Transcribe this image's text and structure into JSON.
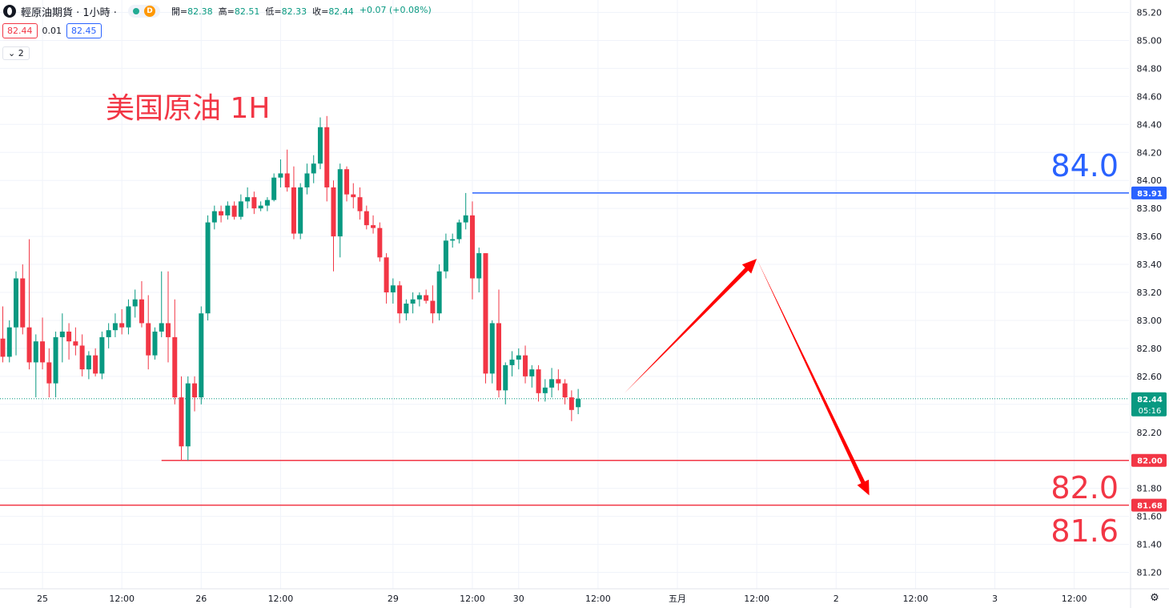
{
  "header": {
    "symbol_title": "輕原油期貨 · 1小時 ·",
    "status_letter": "D",
    "ohlc": [
      {
        "label": "開=",
        "value": "82.38"
      },
      {
        "label": "高=",
        "value": "82.51"
      },
      {
        "label": "低=",
        "value": "82.33"
      },
      {
        "label": "收=",
        "value": "82.44"
      },
      {
        "label": "",
        "value": "+0.07 (+0.08%)"
      }
    ]
  },
  "quote": {
    "bid": "82.44",
    "spread": "0.01",
    "ask": "82.45"
  },
  "collapse": {
    "count": "2"
  },
  "chart_data": {
    "type": "candlestick",
    "title": "美国原油 1H",
    "ylim": [
      81.1,
      85.25
    ],
    "y_ticks": [
      "85.20",
      "85.00",
      "84.80",
      "84.60",
      "84.40",
      "84.20",
      "84.00",
      "83.80",
      "83.60",
      "83.40",
      "83.20",
      "83.00",
      "82.80",
      "82.60",
      "82.40",
      "82.20",
      "82.00",
      "81.80",
      "81.60",
      "81.40",
      "81.20"
    ],
    "x_ticks": [
      {
        "label": "25",
        "slot": 6
      },
      {
        "label": "12:00",
        "slot": 18
      },
      {
        "label": "26",
        "slot": 30
      },
      {
        "label": "12:00",
        "slot": 42
      },
      {
        "label": "29",
        "slot": 59
      },
      {
        "label": "12:00",
        "slot": 71
      },
      {
        "label": "30",
        "slot": 78
      },
      {
        "label": "12:00",
        "slot": 90
      },
      {
        "label": "五月",
        "slot": 102
      },
      {
        "label": "12:00",
        "slot": 114
      },
      {
        "label": "2",
        "slot": 126
      },
      {
        "label": "12:00",
        "slot": 138
      },
      {
        "label": "3",
        "slot": 150
      },
      {
        "label": "12:00",
        "slot": 162
      }
    ],
    "candles": [
      {
        "o": 82.87,
        "h": 83.1,
        "l": 82.7,
        "c": 82.74
      },
      {
        "o": 82.74,
        "h": 83.0,
        "l": 82.7,
        "c": 82.95
      },
      {
        "o": 82.95,
        "h": 83.35,
        "l": 82.75,
        "c": 83.3
      },
      {
        "o": 83.3,
        "h": 83.4,
        "l": 82.9,
        "c": 82.95
      },
      {
        "o": 82.95,
        "h": 83.58,
        "l": 82.65,
        "c": 82.7
      },
      {
        "o": 82.7,
        "h": 82.9,
        "l": 82.45,
        "c": 82.85
      },
      {
        "o": 82.85,
        "h": 83.02,
        "l": 82.65,
        "c": 82.7
      },
      {
        "o": 82.7,
        "h": 82.8,
        "l": 82.45,
        "c": 82.55
      },
      {
        "o": 82.55,
        "h": 82.92,
        "l": 82.45,
        "c": 82.88
      },
      {
        "o": 82.88,
        "h": 83.05,
        "l": 82.7,
        "c": 82.92
      },
      {
        "o": 82.92,
        "h": 82.98,
        "l": 82.72,
        "c": 82.85
      },
      {
        "o": 82.85,
        "h": 82.95,
        "l": 82.75,
        "c": 82.82
      },
      {
        "o": 82.82,
        "h": 82.9,
        "l": 82.6,
        "c": 82.65
      },
      {
        "o": 82.65,
        "h": 82.78,
        "l": 82.58,
        "c": 82.75
      },
      {
        "o": 82.75,
        "h": 82.8,
        "l": 82.6,
        "c": 82.62
      },
      {
        "o": 82.62,
        "h": 82.92,
        "l": 82.58,
        "c": 82.88
      },
      {
        "o": 82.88,
        "h": 82.98,
        "l": 82.8,
        "c": 82.93
      },
      {
        "o": 82.93,
        "h": 83.05,
        "l": 82.88,
        "c": 82.98
      },
      {
        "o": 82.98,
        "h": 83.08,
        "l": 82.9,
        "c": 82.95
      },
      {
        "o": 82.95,
        "h": 83.15,
        "l": 82.9,
        "c": 83.1
      },
      {
        "o": 83.1,
        "h": 83.22,
        "l": 83.02,
        "c": 83.15
      },
      {
        "o": 83.15,
        "h": 83.28,
        "l": 82.95,
        "c": 82.98
      },
      {
        "o": 82.98,
        "h": 83.18,
        "l": 82.65,
        "c": 82.75
      },
      {
        "o": 82.75,
        "h": 82.95,
        "l": 82.72,
        "c": 82.92
      },
      {
        "o": 82.92,
        "h": 83.35,
        "l": 82.88,
        "c": 82.98
      },
      {
        "o": 82.98,
        "h": 83.35,
        "l": 82.7,
        "c": 82.88
      },
      {
        "o": 82.88,
        "h": 83.15,
        "l": 82.4,
        "c": 82.45
      },
      {
        "o": 82.45,
        "h": 82.6,
        "l": 82.0,
        "c": 82.1
      },
      {
        "o": 82.1,
        "h": 82.6,
        "l": 82.0,
        "c": 82.55
      },
      {
        "o": 82.55,
        "h": 82.6,
        "l": 82.35,
        "c": 82.45
      },
      {
        "o": 82.45,
        "h": 83.1,
        "l": 82.4,
        "c": 83.05
      },
      {
        "o": 83.05,
        "h": 83.75,
        "l": 83.0,
        "c": 83.7
      },
      {
        "o": 83.7,
        "h": 83.82,
        "l": 83.65,
        "c": 83.78
      },
      {
        "o": 83.78,
        "h": 83.82,
        "l": 83.7,
        "c": 83.75
      },
      {
        "o": 83.75,
        "h": 83.85,
        "l": 83.72,
        "c": 83.82
      },
      {
        "o": 83.82,
        "h": 83.85,
        "l": 83.72,
        "c": 83.74
      },
      {
        "o": 83.74,
        "h": 83.9,
        "l": 83.72,
        "c": 83.85
      },
      {
        "o": 83.85,
        "h": 83.95,
        "l": 83.8,
        "c": 83.88
      },
      {
        "o": 83.88,
        "h": 83.92,
        "l": 83.76,
        "c": 83.8
      },
      {
        "o": 83.8,
        "h": 83.85,
        "l": 83.78,
        "c": 83.82
      },
      {
        "o": 83.82,
        "h": 83.88,
        "l": 83.78,
        "c": 83.86
      },
      {
        "o": 83.86,
        "h": 84.05,
        "l": 83.85,
        "c": 84.02
      },
      {
        "o": 84.02,
        "h": 84.15,
        "l": 83.95,
        "c": 84.05
      },
      {
        "o": 84.05,
        "h": 84.22,
        "l": 83.92,
        "c": 83.95
      },
      {
        "o": 83.95,
        "h": 84.1,
        "l": 83.58,
        "c": 83.62
      },
      {
        "o": 83.62,
        "h": 83.98,
        "l": 83.58,
        "c": 83.95
      },
      {
        "o": 83.95,
        "h": 84.12,
        "l": 83.9,
        "c": 84.05
      },
      {
        "o": 84.05,
        "h": 84.18,
        "l": 83.98,
        "c": 84.12
      },
      {
        "o": 84.12,
        "h": 84.45,
        "l": 84.08,
        "c": 84.38
      },
      {
        "o": 84.38,
        "h": 84.46,
        "l": 83.85,
        "c": 83.95
      },
      {
        "o": 83.95,
        "h": 84.0,
        "l": 83.35,
        "c": 83.6
      },
      {
        "o": 83.6,
        "h": 84.12,
        "l": 83.45,
        "c": 84.08
      },
      {
        "o": 84.08,
        "h": 84.1,
        "l": 83.85,
        "c": 83.9
      },
      {
        "o": 83.9,
        "h": 83.98,
        "l": 83.8,
        "c": 83.88
      },
      {
        "o": 83.88,
        "h": 83.95,
        "l": 83.72,
        "c": 83.78
      },
      {
        "o": 83.78,
        "h": 83.82,
        "l": 83.65,
        "c": 83.68
      },
      {
        "o": 83.68,
        "h": 83.75,
        "l": 83.62,
        "c": 83.66
      },
      {
        "o": 83.66,
        "h": 83.7,
        "l": 83.42,
        "c": 83.45
      },
      {
        "o": 83.45,
        "h": 83.48,
        "l": 83.12,
        "c": 83.2
      },
      {
        "o": 83.2,
        "h": 83.3,
        "l": 83.12,
        "c": 83.25
      },
      {
        "o": 83.25,
        "h": 83.28,
        "l": 82.98,
        "c": 83.05
      },
      {
        "o": 83.05,
        "h": 83.15,
        "l": 83.0,
        "c": 83.12
      },
      {
        "o": 83.12,
        "h": 83.2,
        "l": 83.05,
        "c": 83.15
      },
      {
        "o": 83.15,
        "h": 83.2,
        "l": 83.1,
        "c": 83.18
      },
      {
        "o": 83.18,
        "h": 83.22,
        "l": 83.12,
        "c": 83.14
      },
      {
        "o": 83.14,
        "h": 83.25,
        "l": 82.98,
        "c": 83.05
      },
      {
        "o": 83.05,
        "h": 83.4,
        "l": 83.0,
        "c": 83.35
      },
      {
        "o": 83.35,
        "h": 83.62,
        "l": 83.3,
        "c": 83.57
      },
      {
        "o": 83.57,
        "h": 83.62,
        "l": 83.52,
        "c": 83.58
      },
      {
        "o": 83.58,
        "h": 83.72,
        "l": 83.55,
        "c": 83.7
      },
      {
        "o": 83.7,
        "h": 83.91,
        "l": 83.65,
        "c": 83.75
      },
      {
        "o": 83.75,
        "h": 83.85,
        "l": 83.15,
        "c": 83.3
      },
      {
        "o": 83.3,
        "h": 83.52,
        "l": 83.2,
        "c": 83.48
      },
      {
        "o": 83.48,
        "h": 83.48,
        "l": 82.55,
        "c": 82.62
      },
      {
        "o": 82.62,
        "h": 83.0,
        "l": 82.55,
        "c": 82.98
      },
      {
        "o": 82.98,
        "h": 83.22,
        "l": 82.45,
        "c": 82.5
      },
      {
        "o": 82.5,
        "h": 82.7,
        "l": 82.4,
        "c": 82.68
      },
      {
        "o": 82.68,
        "h": 82.78,
        "l": 82.6,
        "c": 82.72
      },
      {
        "o": 82.72,
        "h": 82.8,
        "l": 82.65,
        "c": 82.75
      },
      {
        "o": 82.75,
        "h": 82.82,
        "l": 82.55,
        "c": 82.6
      },
      {
        "o": 82.6,
        "h": 82.68,
        "l": 82.52,
        "c": 82.65
      },
      {
        "o": 82.65,
        "h": 82.68,
        "l": 82.42,
        "c": 82.48
      },
      {
        "o": 82.48,
        "h": 82.58,
        "l": 82.42,
        "c": 82.52
      },
      {
        "o": 82.52,
        "h": 82.66,
        "l": 82.45,
        "c": 82.58
      },
      {
        "o": 82.58,
        "h": 82.65,
        "l": 82.5,
        "c": 82.55
      },
      {
        "o": 82.55,
        "h": 82.58,
        "l": 82.4,
        "c": 82.45
      },
      {
        "o": 82.45,
        "h": 82.5,
        "l": 82.28,
        "c": 82.36
      },
      {
        "o": 82.38,
        "h": 82.51,
        "l": 82.33,
        "c": 82.44
      }
    ],
    "levels": [
      {
        "value": 83.91,
        "label": "83.91",
        "color": "#2962ff",
        "x_start_slot": 71,
        "annotation": "84.0"
      },
      {
        "value": 82.0,
        "label": "82.00",
        "color": "#f23645",
        "x_start_slot": 24,
        "annotation": "82.0"
      },
      {
        "value": 81.68,
        "label": "81.68",
        "color": "#f23645",
        "x_start_slot": -1,
        "annotation": "81.6"
      }
    ],
    "current_price": {
      "value": 82.44,
      "label": "82.44",
      "countdown": "05:16",
      "color": "#089981"
    },
    "arrows": [
      {
        "from_slot": 94,
        "from_value": 82.48,
        "to_slot": 114,
        "to_value": 83.44
      },
      {
        "from_slot": 114,
        "from_value": 83.44,
        "to_slot": 131,
        "to_value": 81.75
      }
    ],
    "colors": {
      "up": "#089981",
      "down": "#f23645",
      "grid": "#f0f3fa",
      "text": "#131722",
      "title": "#f23645"
    }
  }
}
